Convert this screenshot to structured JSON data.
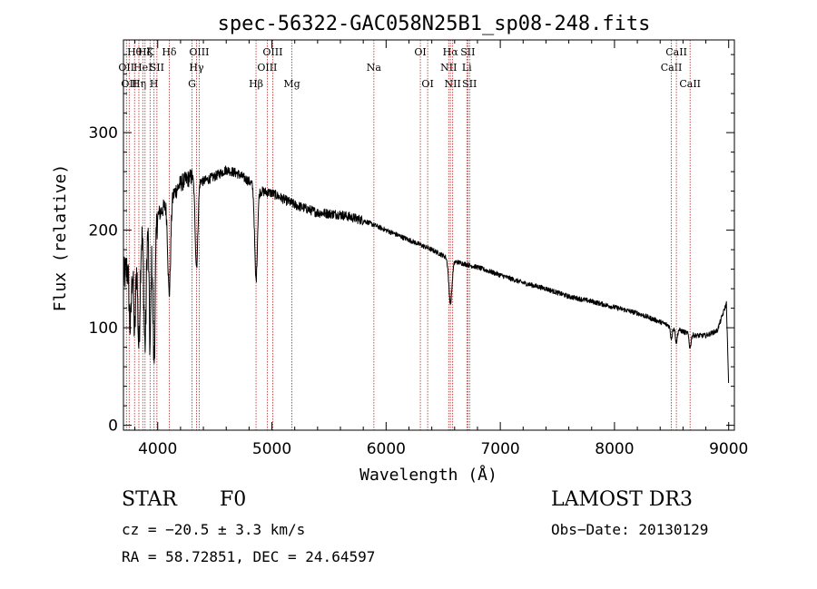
{
  "chart_data": {
    "type": "line",
    "title": "spec-56322-GAC058N25B1_sp08-248.fits",
    "xlabel": "Wavelength (Å)",
    "ylabel": "Flux (relative)",
    "xlim": [
      3700,
      9050
    ],
    "ylim": [
      -5,
      395
    ],
    "xticks": [
      4000,
      5000,
      6000,
      7000,
      8000,
      9000
    ],
    "yticks": [
      0,
      100,
      200,
      300
    ],
    "line_color": "#000000",
    "marker_color": "#b22222",
    "continuum": [
      {
        "x": 3700,
        "y": 150
      },
      {
        "x": 3800,
        "y": 185
      },
      {
        "x": 3900,
        "y": 205
      },
      {
        "x": 4000,
        "y": 215
      },
      {
        "x": 4100,
        "y": 230
      },
      {
        "x": 4200,
        "y": 248
      },
      {
        "x": 4300,
        "y": 255
      },
      {
        "x": 4400,
        "y": 250
      },
      {
        "x": 4500,
        "y": 255
      },
      {
        "x": 4600,
        "y": 262
      },
      {
        "x": 4700,
        "y": 258
      },
      {
        "x": 4800,
        "y": 250
      },
      {
        "x": 4900,
        "y": 240
      },
      {
        "x": 5000,
        "y": 238
      },
      {
        "x": 5200,
        "y": 226
      },
      {
        "x": 5400,
        "y": 218
      },
      {
        "x": 5600,
        "y": 216
      },
      {
        "x": 5800,
        "y": 210
      },
      {
        "x": 6000,
        "y": 200
      },
      {
        "x": 6200,
        "y": 190
      },
      {
        "x": 6400,
        "y": 180
      },
      {
        "x": 6600,
        "y": 168
      },
      {
        "x": 6800,
        "y": 162
      },
      {
        "x": 7000,
        "y": 154
      },
      {
        "x": 7200,
        "y": 146
      },
      {
        "x": 7400,
        "y": 140
      },
      {
        "x": 7600,
        "y": 132
      },
      {
        "x": 7800,
        "y": 127
      },
      {
        "x": 8000,
        "y": 121
      },
      {
        "x": 8200,
        "y": 115
      },
      {
        "x": 8400,
        "y": 106
      },
      {
        "x": 8600,
        "y": 96
      },
      {
        "x": 8700,
        "y": 92
      },
      {
        "x": 8800,
        "y": 92
      },
      {
        "x": 8900,
        "y": 97
      },
      {
        "x": 8980,
        "y": 125
      },
      {
        "x": 9000,
        "y": 40
      }
    ],
    "absorption_features": [
      {
        "x": 3760,
        "depth": 70,
        "width": 10
      },
      {
        "x": 3798,
        "depth": 90,
        "width": 9
      },
      {
        "x": 3835,
        "depth": 110,
        "width": 10
      },
      {
        "x": 3889,
        "depth": 120,
        "width": 10
      },
      {
        "x": 3933,
        "depth": 130,
        "width": 8
      },
      {
        "x": 3968,
        "depth": 145,
        "width": 10
      },
      {
        "x": 4101,
        "depth": 95,
        "width": 12
      },
      {
        "x": 4340,
        "depth": 90,
        "width": 12
      },
      {
        "x": 4861,
        "depth": 95,
        "width": 12
      },
      {
        "x": 6563,
        "depth": 45,
        "width": 14
      },
      {
        "x": 8498,
        "depth": 12,
        "width": 8
      },
      {
        "x": 8542,
        "depth": 14,
        "width": 8
      },
      {
        "x": 8662,
        "depth": 14,
        "width": 8
      }
    ],
    "line_markers": [
      {
        "x": 3726,
        "label": "OII",
        "row": 2
      },
      {
        "x": 3750,
        "label": "OII",
        "row": 3
      },
      {
        "x": 3797,
        "label": "Hθ",
        "row": 1
      },
      {
        "x": 3835,
        "label": "Hη",
        "row": 3
      },
      {
        "x": 3869,
        "label": "HeI",
        "row": 2
      },
      {
        "x": 3889,
        "label": "Hζ",
        "row": 1
      },
      {
        "x": 3933,
        "label": "K",
        "row": 1
      },
      {
        "x": 3968,
        "label": "H",
        "row": 3
      },
      {
        "x": 3993,
        "label": "SII",
        "row": 2
      },
      {
        "x": 4101,
        "label": "Hδ",
        "row": 1
      },
      {
        "x": 4300,
        "label": "G",
        "row": 3
      },
      {
        "x": 4340,
        "label": "Hγ",
        "row": 2
      },
      {
        "x": 4363,
        "label": "OIII",
        "row": 1
      },
      {
        "x": 4861,
        "label": "Hβ",
        "row": 3
      },
      {
        "x": 4959,
        "label": "OIII",
        "row": 2
      },
      {
        "x": 5007,
        "label": "OIII",
        "row": 1
      },
      {
        "x": 5175,
        "label": "Mg",
        "row": 3
      },
      {
        "x": 5893,
        "label": "Na",
        "row": 2
      },
      {
        "x": 6300,
        "label": "OI",
        "row": 1
      },
      {
        "x": 6364,
        "label": "OI",
        "row": 3
      },
      {
        "x": 6548,
        "label": "NII",
        "row": 2
      },
      {
        "x": 6563,
        "label": "Hα",
        "row": 1
      },
      {
        "x": 6583,
        "label": "NII",
        "row": 3
      },
      {
        "x": 6707,
        "label": "Li",
        "row": 2
      },
      {
        "x": 6716,
        "label": "SII",
        "row": 1
      },
      {
        "x": 6731,
        "label": "SII",
        "row": 3
      },
      {
        "x": 8498,
        "label": "CaII",
        "row": 2
      },
      {
        "x": 8542,
        "label": "CaII",
        "row": 1
      },
      {
        "x": 8662,
        "label": "CaII",
        "row": 3
      }
    ]
  },
  "info": {
    "object_class": "STAR",
    "subclass": "F0",
    "survey": "LAMOST DR3",
    "redshift_line": "cz = −20.5 ± 3.3 km/s",
    "obs_date_line": "Obs−Date: 20130129",
    "coords_line": "RA =  58.72851, DEC =  24.64597"
  }
}
